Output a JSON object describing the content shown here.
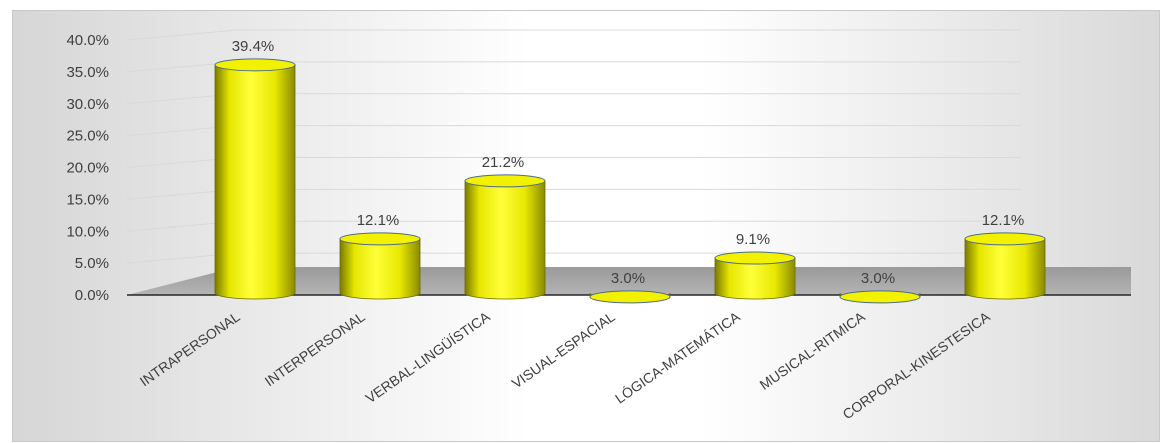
{
  "chart_data": {
    "type": "bar",
    "style": "3d-cylinder",
    "categories": [
      "INTRAPERSONAL",
      "INTERPERSONAL",
      "VERBAL-LINGÜÍSTICA",
      "VISUAL-ESPACIAL",
      "LÓGICA-MATEMÁTICA",
      "MUSICAL-RITMICA",
      "CORPORAL-KINESTESICA"
    ],
    "values": [
      39.4,
      12.1,
      21.2,
      3.0,
      9.1,
      3.0,
      12.1
    ],
    "data_labels": [
      "39.4%",
      "12.1%",
      "21.2%",
      "3.0%",
      "9.1%",
      "3.0%",
      "12.1%"
    ],
    "y_ticks": [
      "0.0%",
      "5.0%",
      "10.0%",
      "15.0%",
      "20.0%",
      "25.0%",
      "30.0%",
      "35.0%",
      "40.0%"
    ],
    "ylim": [
      0,
      40
    ],
    "title": "",
    "xlabel": "",
    "ylabel": "",
    "grid": true,
    "legend": "none",
    "colors": {
      "bar": "#ffff00",
      "bar_shade": "#8a8a00",
      "floor": "#a6a6a6",
      "grid": "#d9d9d9",
      "text": "#404040"
    }
  }
}
